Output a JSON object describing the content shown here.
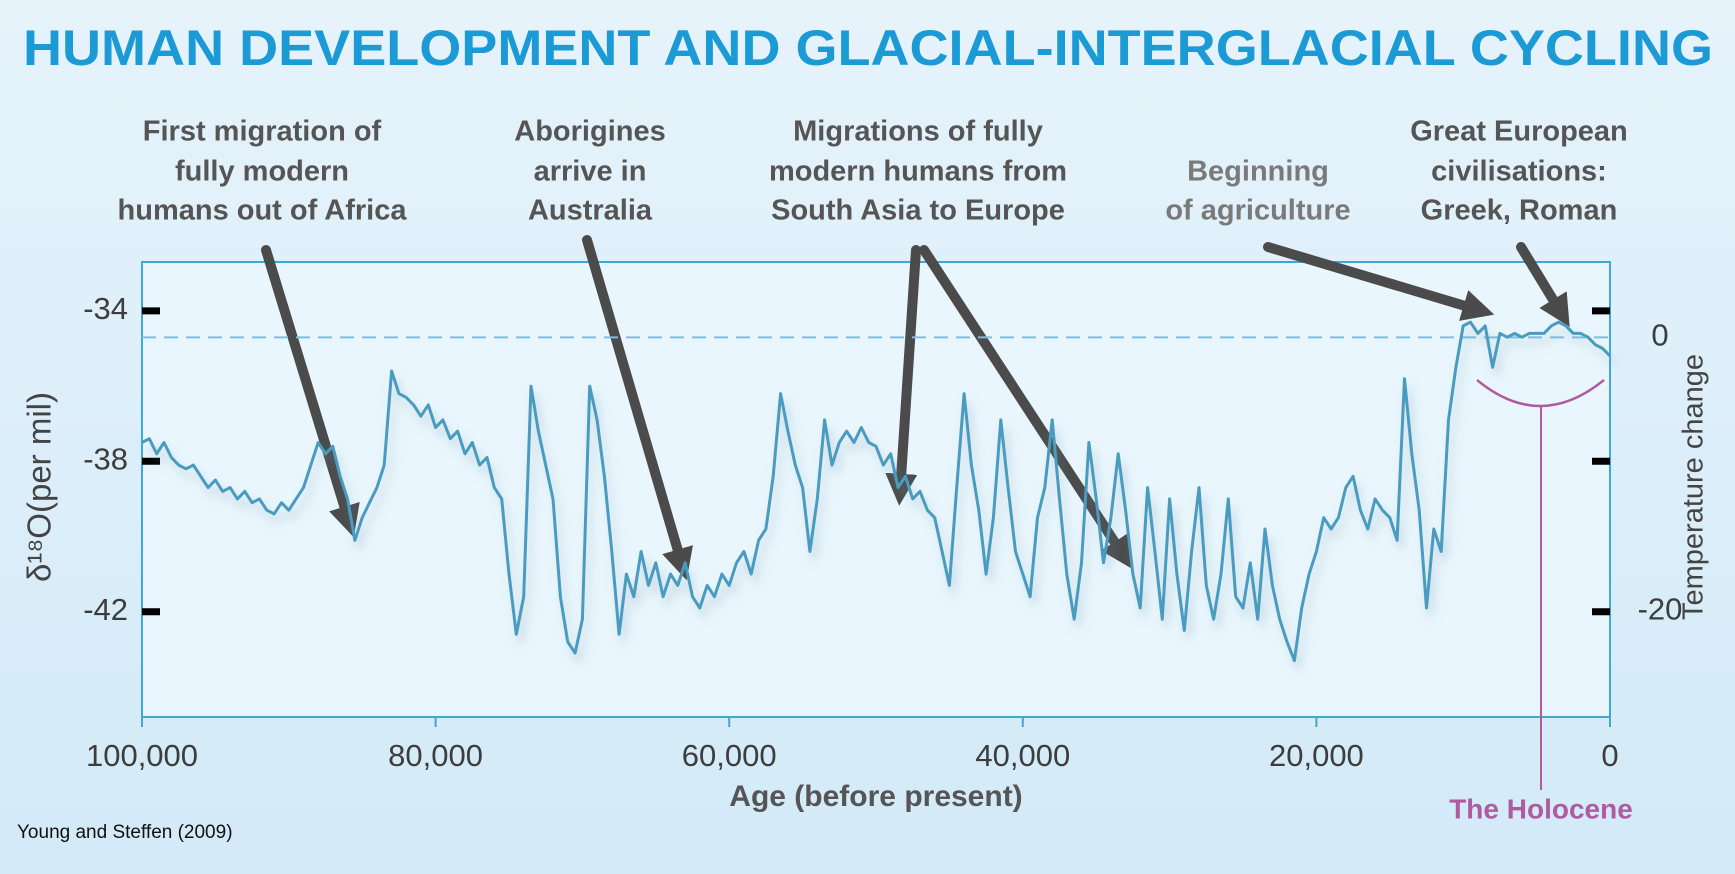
{
  "chart_data": {
    "type": "line",
    "title": "HUMAN DEVELOPMENT AND GLACIAL-INTERGLACIAL CYCLING",
    "x_label": "Age (before present)",
    "y_label": "δ¹⁸O(per mil)",
    "y2_label": "Temperature change",
    "source": "Young and Steffen (2009)",
    "holocene_label": "The Holocene",
    "annotations": [
      {
        "lines": [
          "First migration of",
          "fully modern",
          "humans out of Africa"
        ]
      },
      {
        "lines": [
          "Aborigines",
          "arrive in",
          "Australia"
        ]
      },
      {
        "lines": [
          "Migrations of fully",
          "modern humans from",
          "South Asia to Europe"
        ]
      },
      {
        "lines": [
          "Beginning",
          "of agriculture"
        ]
      },
      {
        "lines": [
          "Great European",
          "civilisations:",
          "Greek, Roman"
        ]
      }
    ],
    "x": [
      100000,
      99500,
      99000,
      98500,
      98000,
      97500,
      97000,
      96500,
      96000,
      95500,
      95000,
      94500,
      94000,
      93500,
      93000,
      92500,
      92000,
      91500,
      91000,
      90500,
      90000,
      89500,
      89000,
      88500,
      88000,
      87500,
      87000,
      86500,
      86000,
      85500,
      85000,
      84500,
      84000,
      83500,
      83000,
      82500,
      82000,
      81500,
      81000,
      80500,
      80000,
      79500,
      79000,
      78500,
      78000,
      77500,
      77000,
      76500,
      76000,
      75500,
      75000,
      74500,
      74000,
      73500,
      73000,
      72500,
      72000,
      71500,
      71000,
      70500,
      70000,
      69500,
      69000,
      68500,
      68000,
      67500,
      67000,
      66500,
      66000,
      65500,
      65000,
      64500,
      64000,
      63500,
      63000,
      62500,
      62000,
      61500,
      61000,
      60500,
      60000,
      59500,
      59000,
      58500,
      58000,
      57500,
      57000,
      56500,
      56000,
      55500,
      55000,
      54500,
      54000,
      53500,
      53000,
      52500,
      52000,
      51500,
      51000,
      50500,
      50000,
      49500,
      49000,
      48500,
      48000,
      47500,
      47000,
      46500,
      46000,
      45500,
      45000,
      44500,
      44000,
      43500,
      43000,
      42500,
      42000,
      41500,
      41000,
      40500,
      40000,
      39500,
      39000,
      38500,
      38000,
      37500,
      37000,
      36500,
      36000,
      35500,
      35000,
      34500,
      34000,
      33500,
      33000,
      32500,
      32000,
      31500,
      31000,
      30500,
      30000,
      29500,
      29000,
      28500,
      28000,
      27500,
      27000,
      26500,
      26000,
      25500,
      25000,
      24500,
      24000,
      23500,
      23000,
      22500,
      22000,
      21500,
      21000,
      20500,
      20000,
      19500,
      19000,
      18500,
      18000,
      17500,
      17000,
      16500,
      16000,
      15500,
      15000,
      14500,
      14000,
      13500,
      13000,
      12500,
      12000,
      11500,
      11000,
      10500,
      10000,
      9500,
      9000,
      8500,
      8000,
      7500,
      7000,
      6500,
      6000,
      5500,
      5000,
      4500,
      4000,
      3500,
      3000,
      2500,
      2000,
      1500,
      1000,
      500,
      0
    ],
    "series": [
      {
        "color": "#4a9cc0",
        "values": [
          -37.5,
          -37.4,
          -37.8,
          -37.5,
          -37.9,
          -38.1,
          -38.2,
          -38.1,
          -38.4,
          -38.7,
          -38.5,
          -38.8,
          -38.7,
          -39.0,
          -38.8,
          -39.1,
          -39.0,
          -39.3,
          -39.4,
          -39.1,
          -39.3,
          -39.0,
          -38.7,
          -38.1,
          -37.5,
          -37.8,
          -37.6,
          -38.4,
          -39.0,
          -40.1,
          -39.5,
          -39.1,
          -38.7,
          -38.1,
          -35.6,
          -36.2,
          -36.3,
          -36.5,
          -36.8,
          -36.5,
          -37.1,
          -36.9,
          -37.4,
          -37.2,
          -37.8,
          -37.5,
          -38.1,
          -37.9,
          -38.7,
          -39.0,
          -41.0,
          -42.6,
          -41.6,
          -36.0,
          -37.2,
          -38.1,
          -39.0,
          -41.6,
          -42.8,
          -43.1,
          -42.2,
          -36.0,
          -36.9,
          -38.4,
          -40.4,
          -42.6,
          -41.0,
          -41.6,
          -40.4,
          -41.3,
          -40.7,
          -41.6,
          -41.0,
          -41.3,
          -40.7,
          -41.6,
          -41.9,
          -41.3,
          -41.6,
          -41.0,
          -41.3,
          -40.7,
          -40.4,
          -41.0,
          -40.1,
          -39.8,
          -38.4,
          -36.2,
          -37.2,
          -38.1,
          -38.7,
          -40.4,
          -39.0,
          -36.9,
          -38.1,
          -37.5,
          -37.2,
          -37.5,
          -37.1,
          -37.5,
          -37.6,
          -38.1,
          -37.8,
          -38.7,
          -38.4,
          -39.0,
          -38.8,
          -39.3,
          -39.5,
          -40.4,
          -41.3,
          -38.7,
          -36.2,
          -38.1,
          -39.3,
          -41.0,
          -39.5,
          -36.9,
          -38.7,
          -40.4,
          -41.0,
          -41.6,
          -39.5,
          -38.7,
          -36.9,
          -39.0,
          -41.0,
          -42.2,
          -40.7,
          -37.5,
          -39.0,
          -40.7,
          -39.5,
          -37.8,
          -39.3,
          -41.0,
          -41.9,
          -38.7,
          -40.4,
          -42.2,
          -39.0,
          -41.0,
          -42.5,
          -40.4,
          -38.7,
          -41.3,
          -42.2,
          -41.0,
          -39.0,
          -41.6,
          -41.9,
          -40.7,
          -42.2,
          -39.8,
          -41.3,
          -42.2,
          -42.8,
          -43.3,
          -41.9,
          -41.0,
          -40.4,
          -39.5,
          -39.8,
          -39.5,
          -38.7,
          -38.4,
          -39.3,
          -39.8,
          -39.0,
          -39.3,
          -39.5,
          -40.1,
          -35.8,
          -37.8,
          -39.3,
          -41.9,
          -39.8,
          -40.4,
          -36.9,
          -35.5,
          -34.4,
          -34.3,
          -34.6,
          -34.4,
          -35.5,
          -34.6,
          -34.7,
          -34.6,
          -34.7,
          -34.6,
          -34.6,
          -34.6,
          -34.4,
          -34.3,
          -34.4,
          -34.6,
          -34.6,
          -34.7,
          -34.9,
          -35.0,
          -35.2
        ]
      }
    ],
    "xlim": [
      100000,
      0
    ],
    "xticks": [
      {
        "value": 100000,
        "label": "100,000"
      },
      {
        "value": 80000,
        "label": "80,000"
      },
      {
        "value": 60000,
        "label": "60,000"
      },
      {
        "value": 40000,
        "label": "40,000"
      },
      {
        "value": 20000,
        "label": "20,000"
      },
      0
    ],
    "ylim": [
      -44.8,
      -32.7
    ],
    "yticks": [
      -34,
      -38,
      -42
    ],
    "y2lim": [
      -27.7,
      5.5
    ],
    "y2ticks": [
      0,
      -20
    ],
    "y2_reference_line": 0
  }
}
